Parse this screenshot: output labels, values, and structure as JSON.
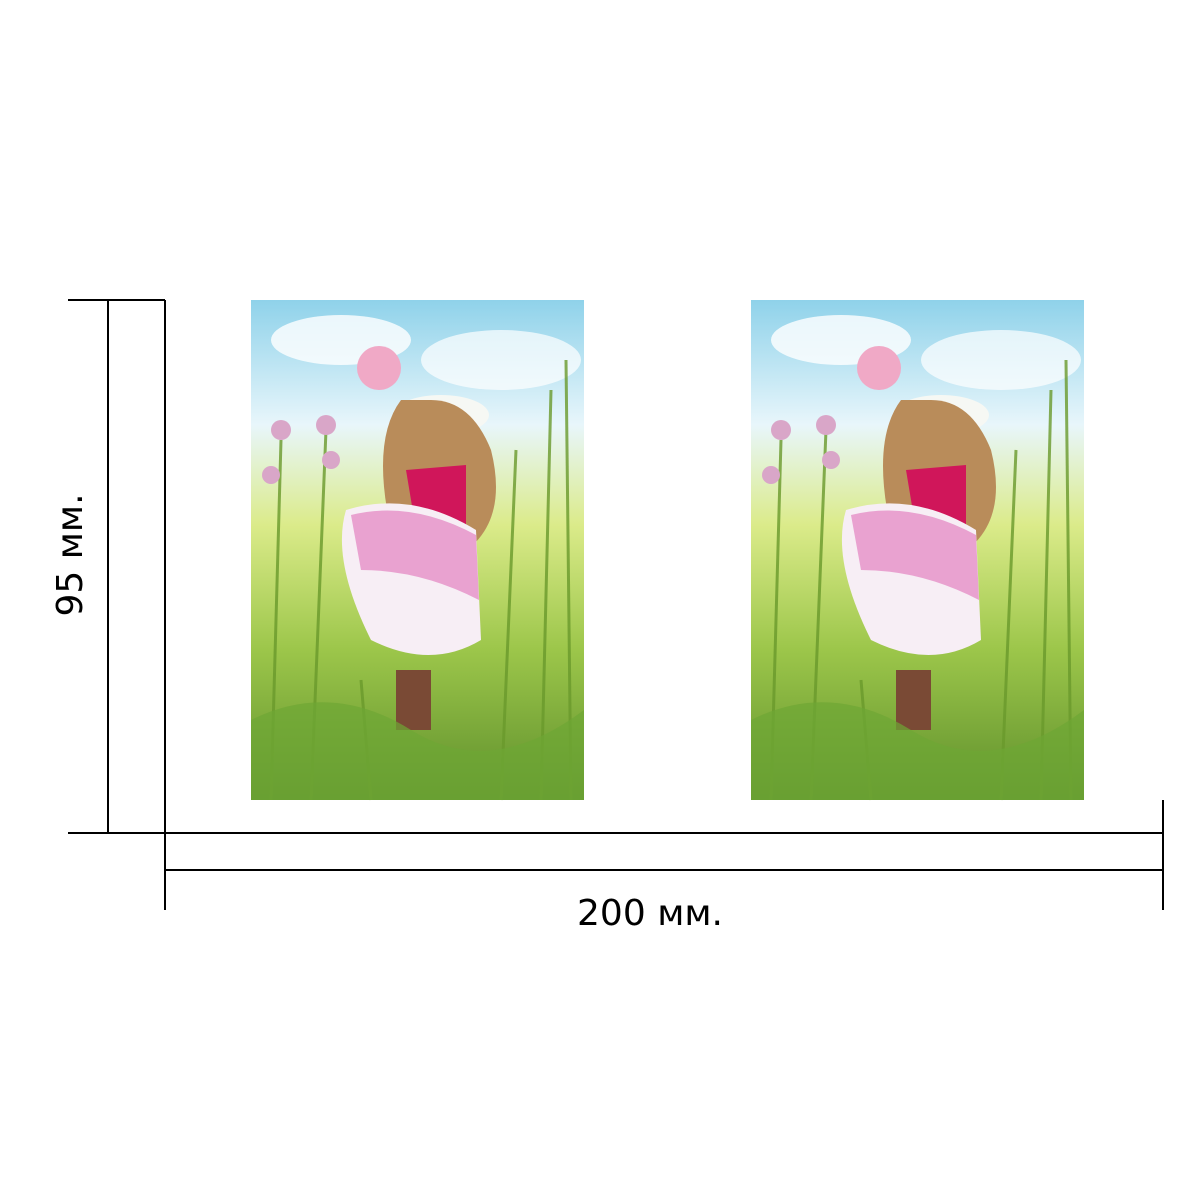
{
  "dimensions": {
    "height_label": "95 мм.",
    "width_label": "200 мм."
  }
}
